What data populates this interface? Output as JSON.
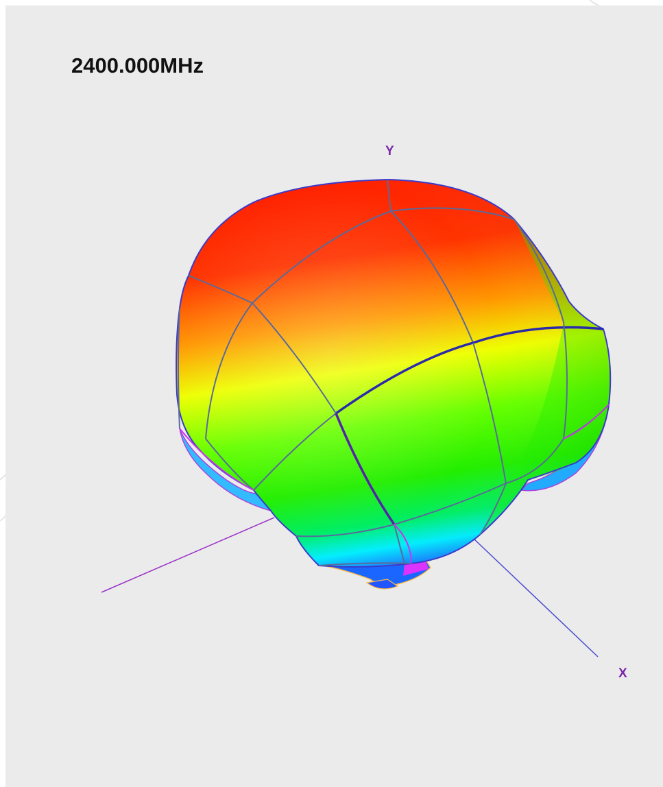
{
  "frequency_label": "2400.000MHz",
  "axes": {
    "y_label": "Y",
    "x_label": "X"
  },
  "colors": {
    "panel_background": "#ebebeb",
    "axis_label": "#7a2aa8",
    "x_axis": "#4a4ad0",
    "z_axis": "#9a32c8",
    "mesh_line": "#5a6a9a",
    "gradient_high": "#ff2200",
    "gradient_mid_high": "#ff9900",
    "gradient_mid": "#eeff00",
    "gradient_mid_low": "#22ee00",
    "gradient_low": "#00eeff",
    "gradient_min": "#1a66ff",
    "gradient_floor": "#dd33ff"
  }
}
